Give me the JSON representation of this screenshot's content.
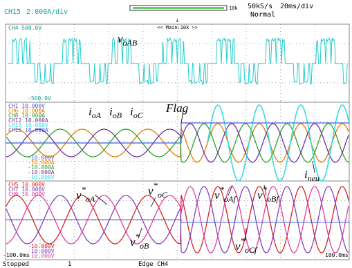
{
  "header": {
    "channel": "CH15",
    "scale": "2.000A/div",
    "zoom": "10k",
    "sample_rate": "50kS/s",
    "time_div": "20ms/div",
    "mode": "Normal"
  },
  "panels": [
    {
      "zoom_label": "<< Main:10k >>",
      "top_labels": [
        "CH4    500.0V"
      ],
      "bottom_labels": [
        "-500.0V"
      ],
      "annotations": [
        {
          "main": "v",
          "sub": "oAB"
        }
      ]
    },
    {
      "top_labels": [
        "CH1    10.000V",
        "CH6    10.000A",
        "CH8    10.000A",
        "CH12   10.000A",
        "CH13   10.000V",
        "CH15   10.000A"
      ],
      "bottom_labels": [
        "-10.000V",
        "-10.000A",
        "-10.000A",
        "-10.000A",
        "-10.000V"
      ],
      "annotations": [
        {
          "main": "i",
          "sub": "oA"
        },
        {
          "main": "i",
          "sub": "oB"
        },
        {
          "main": "i",
          "sub": "oC"
        },
        {
          "main": "Flag"
        },
        {
          "main": "i",
          "sub": "neu"
        }
      ]
    },
    {
      "top_labels": [
        "CH5    10.000V",
        "CH7    10.000V",
        "CH9    10.000V"
      ],
      "bottom_labels": [
        "-10.000V",
        "-10.000V",
        "-10.000V"
      ],
      "annotations": [
        {
          "main": "v",
          "sup": "*",
          "sub": "oA"
        },
        {
          "main": "v",
          "sup": "*",
          "sub": "oC"
        },
        {
          "main": "v",
          "sup": "*",
          "sub": "oB"
        },
        {
          "main": "v",
          "sup": "*",
          "sub": "oAf"
        },
        {
          "main": "v",
          "sup": "*",
          "sub": "oBf"
        },
        {
          "main": "v",
          "sup": "*",
          "sub": "oCf"
        }
      ]
    }
  ],
  "footer": {
    "left_time": "-100.0ms",
    "right_time": "100.0ms",
    "status": "Stopped",
    "count": "1",
    "trigger": "Edge CH4"
  }
}
